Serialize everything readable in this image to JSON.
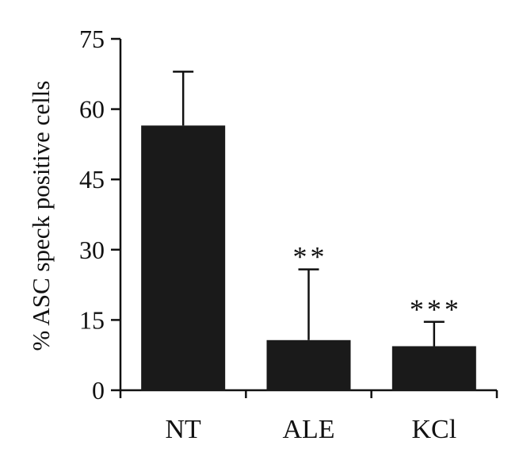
{
  "chart_data": {
    "type": "bar",
    "title": "",
    "xlabel": "",
    "ylabel": "% ASC speck positive cells",
    "ylim": [
      0,
      75
    ],
    "yticks": [
      0,
      15,
      30,
      45,
      60,
      75
    ],
    "categories": [
      "NT",
      "ALE",
      "KCl"
    ],
    "values": [
      56.5,
      10.7,
      9.4
    ],
    "error_upper": [
      68,
      25.8,
      14.6
    ],
    "annotations": [
      "",
      "**",
      "***"
    ],
    "bar_color": "#1a1a1a",
    "grid": false,
    "legend": "none"
  }
}
